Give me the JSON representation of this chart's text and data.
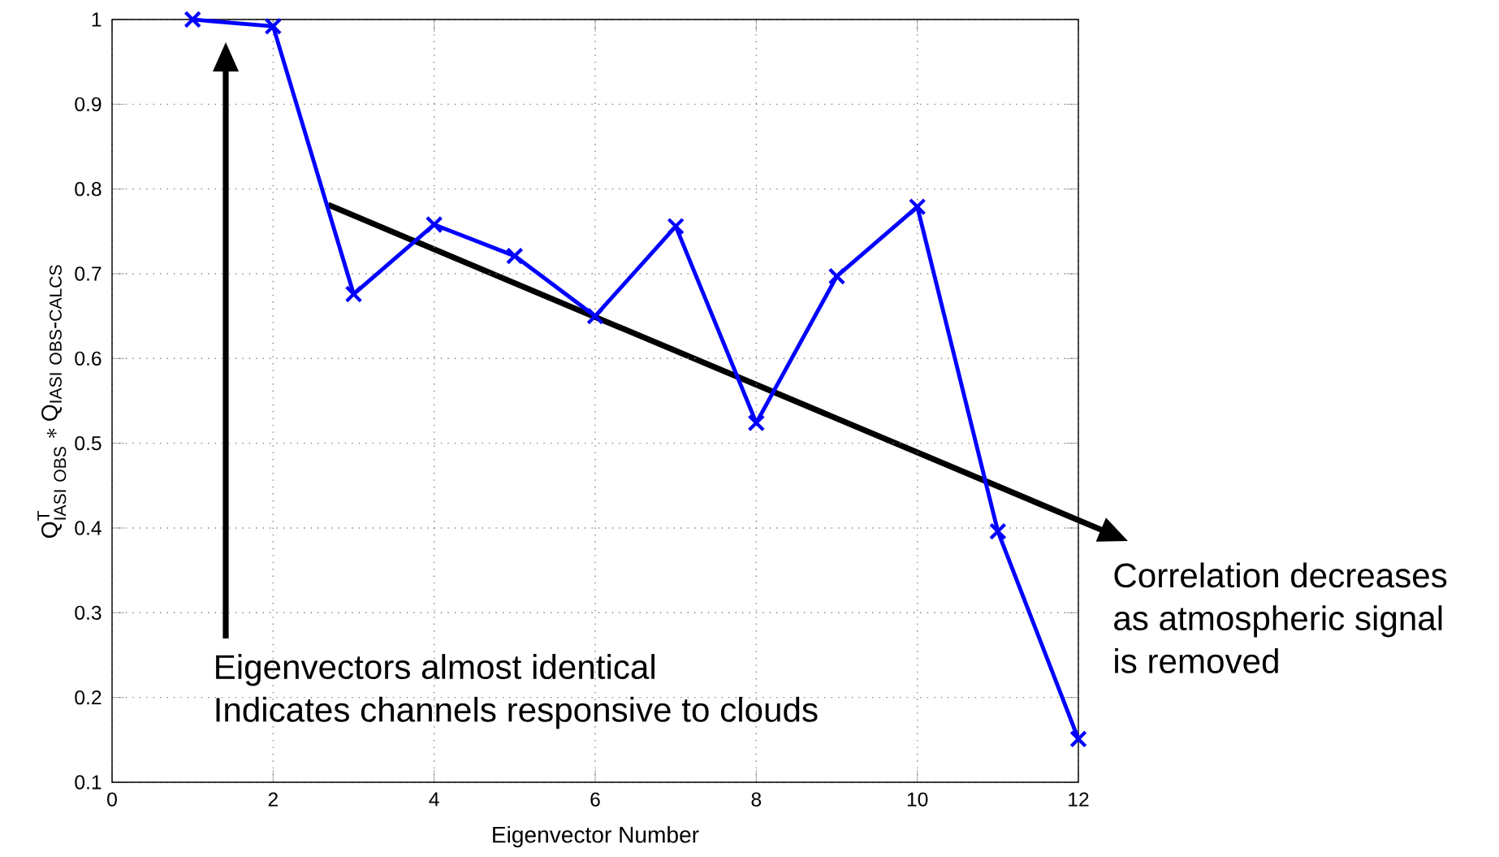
{
  "chart_data": {
    "type": "line",
    "xlabel": "Eigenvector Number",
    "ylabel": "\\mathrm{Q}^{\\mathrm{T}}_{\\mathrm{IASI\\ OBS}} * \\mathrm{Q}_{\\mathrm{IASI\\ OBS\\mbox{-}CALCS}}",
    "x": [
      1,
      2,
      3,
      4,
      5,
      6,
      7,
      8,
      9,
      10,
      11,
      12
    ],
    "series": [
      {
        "color": "#0000ff",
        "values": [
          1.0,
          0.992,
          0.676,
          0.758,
          0.721,
          0.65,
          0.756,
          0.524,
          0.697,
          0.779,
          0.396,
          0.151
        ]
      }
    ],
    "xlim": [
      0,
      12
    ],
    "ylim": [
      0.1,
      1
    ],
    "xticks": [
      0,
      2,
      4,
      6,
      8,
      10,
      12
    ],
    "yticks": [
      0.1,
      0.2,
      0.3,
      0.4,
      0.5,
      0.6,
      0.7,
      0.8,
      0.9,
      1
    ],
    "grid": true,
    "marker": "cross",
    "line_style": "solid",
    "annotations": [
      "Eigenvectors almost identical",
      "Indicates channels responsive to clouds",
      "Correlation decreases",
      "as atmospheric signal",
      "is removed"
    ]
  }
}
